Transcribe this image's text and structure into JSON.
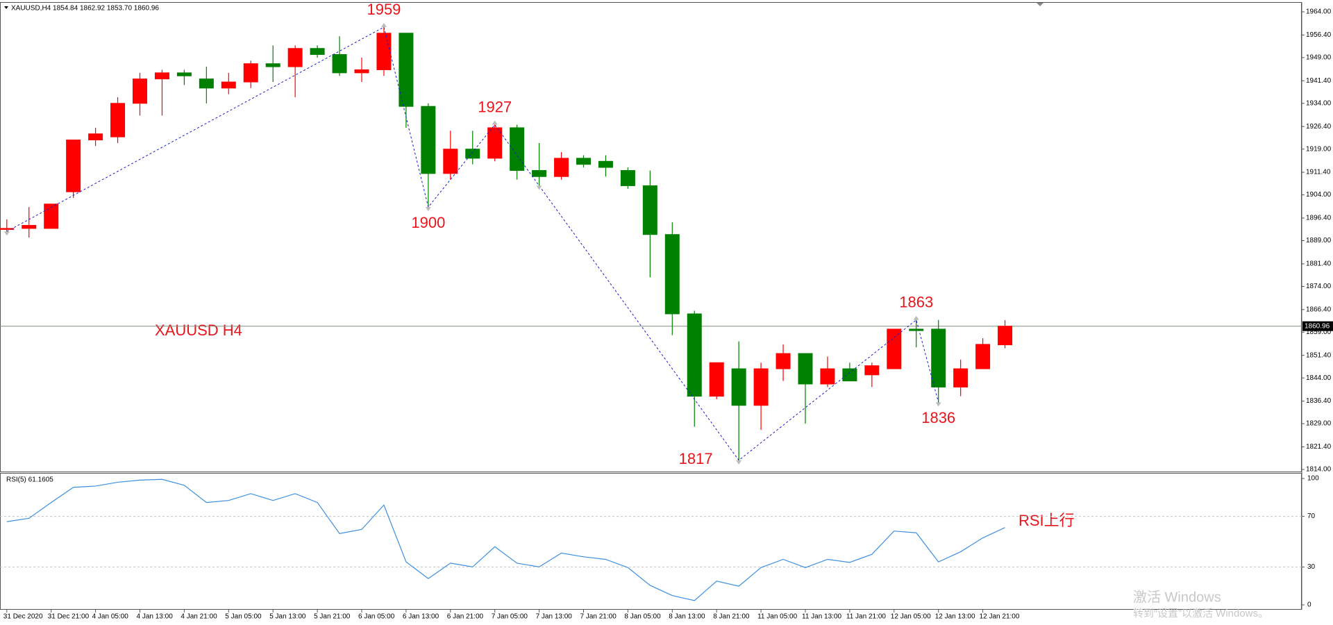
{
  "chart_data": [
    {
      "type": "candlestick",
      "title": "XAUUSD,H4  1854.84 1862.92 1853.70 1860.96",
      "annotation": "XAUUSD  H4",
      "categories": [
        "31 Dec 2020",
        null,
        "31 Dec 21:00",
        null,
        "4 Jan 05:00",
        null,
        "4 Jan 13:00",
        null,
        "4 Jan 21:00",
        null,
        "5 Jan 05:00",
        null,
        "5 Jan 13:00",
        null,
        "5 Jan 21:00",
        null,
        "6 Jan 05:00",
        null,
        "6 Jan 13:00",
        null,
        "6 Jan 21:00",
        null,
        "7 Jan 05:00",
        null,
        "7 Jan 13:00",
        null,
        "7 Jan 21:00",
        null,
        "8 Jan 05:00",
        null,
        "8 Jan 13:00",
        null,
        "8 Jan 21:00",
        null,
        "11 Jan 05:00",
        null,
        "11 Jan 13:00",
        null,
        "11 Jan 21:00",
        null,
        "12 Jan 05:00",
        null,
        "12 Jan 13:00",
        null,
        "12 Jan 21:00",
        null
      ],
      "open": [
        1893,
        1893,
        1893,
        1905,
        1922,
        1923,
        1934,
        1942,
        1944,
        1942,
        1939,
        1941,
        1947,
        1946,
        1952,
        1950,
        1944,
        1945,
        1957,
        1933,
        1911,
        1919,
        1916,
        1926,
        1912,
        1910,
        1916,
        1915,
        1912,
        1907,
        1891,
        1865,
        1838,
        1847,
        1835,
        1847,
        1852,
        1842,
        1847,
        1845,
        1847,
        1860,
        1860,
        1841,
        1847,
        1854.84
      ],
      "high": [
        1896,
        1900,
        1901,
        1922,
        1926,
        1936,
        1944,
        1945,
        1945,
        1946,
        1944,
        1948,
        1953,
        1953,
        1953,
        1956,
        1949,
        1959,
        1957,
        1934,
        1925,
        1925,
        1927,
        1927,
        1921,
        1918,
        1917,
        1917,
        1913,
        1912,
        1895,
        1866,
        1849,
        1856,
        1849,
        1855,
        1852,
        1851,
        1849,
        1849,
        1860,
        1863,
        1863,
        1850,
        1857,
        1862.92
      ],
      "low": [
        1892,
        1890,
        1893,
        1903,
        1920,
        1921,
        1930,
        1930,
        1940,
        1934,
        1937,
        1939,
        1941,
        1936,
        1949,
        1943,
        1941,
        1943,
        1926,
        1900,
        1909,
        1914,
        1915,
        1909,
        1907,
        1909,
        1913,
        1910,
        1906,
        1877,
        1858,
        1828,
        1837,
        1817,
        1827,
        1843,
        1829,
        1841,
        1843,
        1841,
        1847,
        1854,
        1836,
        1838,
        1847,
        1853.7
      ],
      "close": [
        1893,
        1894,
        1901,
        1922,
        1924,
        1934,
        1942,
        1944,
        1943,
        1939,
        1941,
        1947,
        1946,
        1952,
        1950,
        1944,
        1945,
        1957,
        1933,
        1911,
        1919,
        1916,
        1926,
        1912,
        1910,
        1916,
        1914,
        1913,
        1907,
        1891,
        1865,
        1838,
        1849,
        1835,
        1847,
        1852,
        1842,
        1847,
        1843,
        1848,
        1860,
        1859.5,
        1841,
        1847,
        1855,
        1860.96
      ],
      "up_color": "#ff0000",
      "down_color": "#008000",
      "current_price": 1860.96,
      "zigzag": {
        "x": [
          0,
          17,
          19,
          22,
          24,
          33,
          41,
          42
        ],
        "values": [
          1892,
          1959,
          1900,
          1927,
          1907,
          1817,
          1863,
          1836
        ],
        "value_labels": [
          null,
          "1959",
          "1900",
          "1927",
          null,
          "1817",
          "1863",
          "1836"
        ],
        "color": "#1a1acc"
      },
      "ylim": [
        1814,
        1964
      ],
      "yticks": [
        {
          "value": 1964,
          "label": "1964.00"
        },
        {
          "value": 1956.4,
          "label": "1956.40"
        },
        {
          "value": 1949,
          "label": "1949.00"
        },
        {
          "value": 1941.4,
          "label": "1941.40"
        },
        {
          "value": 1934,
          "label": "1934.00"
        },
        {
          "value": 1926.4,
          "label": "1926.40"
        },
        {
          "value": 1919,
          "label": "1919.00"
        },
        {
          "value": 1911.4,
          "label": "1911.40"
        },
        {
          "value": 1904,
          "label": "1904.00"
        },
        {
          "value": 1896.4,
          "label": "1896.40"
        },
        {
          "value": 1889,
          "label": "1889.00"
        },
        {
          "value": 1881.4,
          "label": "1881.40"
        },
        {
          "value": 1874,
          "label": "1874.00"
        },
        {
          "value": 1866.4,
          "label": "1866.40"
        },
        {
          "value": 1859,
          "label": "1859.00"
        },
        {
          "value": 1851.4,
          "label": "1851.40"
        },
        {
          "value": 1844,
          "label": "1844.00"
        },
        {
          "value": 1836.4,
          "label": "1836.40"
        },
        {
          "value": 1829,
          "label": "1829.00"
        },
        {
          "value": 1821.4,
          "label": "1821.40"
        },
        {
          "value": 1814,
          "label": "1814.00"
        }
      ]
    },
    {
      "type": "line",
      "title": "RSI(5) 61.1605",
      "annotation": "RSI上行",
      "values": [
        65.8,
        68.5,
        81,
        93,
        94,
        97,
        98.7,
        99.3,
        94.6,
        81,
        82.6,
        88,
        82.6,
        88,
        81,
        56.4,
        59.7,
        79,
        34,
        20.8,
        33,
        30,
        46,
        33,
        30,
        41,
        38,
        36,
        29.5,
        15.4,
        7.4,
        3.4,
        18.8,
        14.8,
        29.5,
        36,
        29.5,
        36,
        33.6,
        40,
        58.4,
        57,
        34,
        42,
        53,
        61.1605
      ],
      "color": "#3c8fe0",
      "ylim": [
        0,
        100
      ],
      "yticks": [
        100,
        70,
        30,
        0
      ]
    }
  ],
  "watermark": {
    "title": "激活 Windows",
    "subtitle": "转到“设置”以激活 Windows。"
  }
}
